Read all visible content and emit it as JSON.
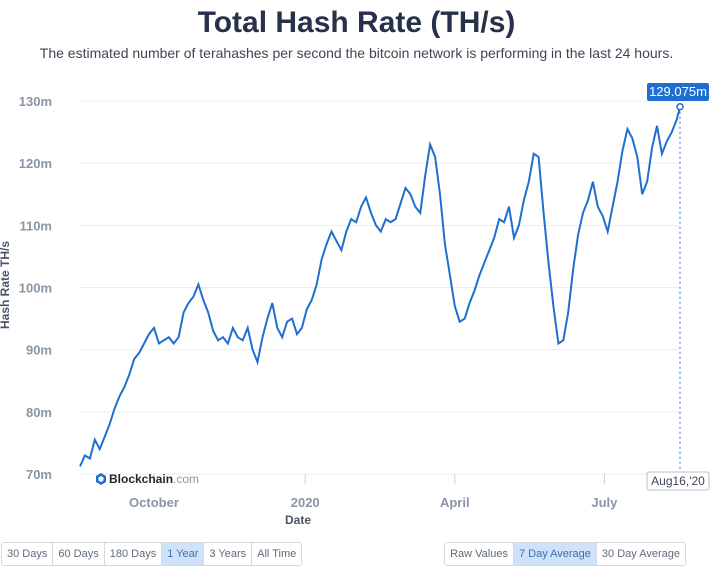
{
  "title": "Total Hash Rate (TH/s)",
  "subtitle": "The estimated number of terahashes per second the bitcoin network is performing in the last 24 hours.",
  "brand": {
    "name": "Blockchain",
    "suffix": ".com"
  },
  "tooltip": {
    "value": "129.075m",
    "date": "Aug16,'20"
  },
  "range_buttons": [
    {
      "label": "30 Days",
      "active": false
    },
    {
      "label": "60 Days",
      "active": false
    },
    {
      "label": "180 Days",
      "active": false
    },
    {
      "label": "1 Year",
      "active": true
    },
    {
      "label": "3 Years",
      "active": false
    },
    {
      "label": "All Time",
      "active": false
    }
  ],
  "avg_buttons": [
    {
      "label": "Raw Values",
      "active": false
    },
    {
      "label": "7 Day Average",
      "active": true
    },
    {
      "label": "30 Day Average",
      "active": false
    }
  ],
  "colors": {
    "line": "#1f6fd1",
    "tooltip_bg": "#1f6fd1",
    "active_button": "#cfe2fa"
  },
  "chart_data": {
    "type": "line",
    "title": "Total Hash Rate (TH/s)",
    "xlabel": "Date",
    "ylabel": "Hash Rate TH/s",
    "ylim": [
      70,
      130
    ],
    "y_ticks": [
      70,
      80,
      90,
      100,
      110,
      120,
      130
    ],
    "y_tick_labels": [
      "70m",
      "80m",
      "90m",
      "100m",
      "110m",
      "120m",
      "130m"
    ],
    "x_range": [
      "2019-08-17",
      "2020-08-16"
    ],
    "x_ticks": [
      {
        "date": "2019-10-01",
        "label": "October"
      },
      {
        "date": "2020-01-01",
        "label": "2020"
      },
      {
        "date": "2020-04-01",
        "label": "April"
      },
      {
        "date": "2020-07-01",
        "label": "July"
      }
    ],
    "grid": true,
    "series": [
      {
        "unit": "TH/s (millions)",
        "x": [
          "2019-08-17",
          "2019-08-20",
          "2019-08-23",
          "2019-08-26",
          "2019-08-29",
          "2019-09-01",
          "2019-09-04",
          "2019-09-07",
          "2019-09-10",
          "2019-09-13",
          "2019-09-16",
          "2019-09-19",
          "2019-09-22",
          "2019-09-25",
          "2019-09-28",
          "2019-10-01",
          "2019-10-04",
          "2019-10-07",
          "2019-10-10",
          "2019-10-13",
          "2019-10-16",
          "2019-10-19",
          "2019-10-22",
          "2019-10-25",
          "2019-10-28",
          "2019-10-31",
          "2019-11-03",
          "2019-11-06",
          "2019-11-09",
          "2019-11-12",
          "2019-11-15",
          "2019-11-18",
          "2019-11-21",
          "2019-11-24",
          "2019-11-27",
          "2019-11-30",
          "2019-12-03",
          "2019-12-06",
          "2019-12-09",
          "2019-12-12",
          "2019-12-15",
          "2019-12-18",
          "2019-12-21",
          "2019-12-24",
          "2019-12-27",
          "2019-12-30",
          "2020-01-02",
          "2020-01-05",
          "2020-01-08",
          "2020-01-11",
          "2020-01-14",
          "2020-01-17",
          "2020-01-20",
          "2020-01-23",
          "2020-01-26",
          "2020-01-29",
          "2020-02-01",
          "2020-02-04",
          "2020-02-07",
          "2020-02-10",
          "2020-02-13",
          "2020-02-16",
          "2020-02-19",
          "2020-02-22",
          "2020-02-25",
          "2020-02-28",
          "2020-03-02",
          "2020-03-05",
          "2020-03-08",
          "2020-03-11",
          "2020-03-14",
          "2020-03-17",
          "2020-03-20",
          "2020-03-23",
          "2020-03-26",
          "2020-03-29",
          "2020-04-01",
          "2020-04-04",
          "2020-04-07",
          "2020-04-10",
          "2020-04-13",
          "2020-04-16",
          "2020-04-19",
          "2020-04-22",
          "2020-04-25",
          "2020-04-28",
          "2020-05-01",
          "2020-05-04",
          "2020-05-07",
          "2020-05-10",
          "2020-05-13",
          "2020-05-16",
          "2020-05-19",
          "2020-05-22",
          "2020-05-25",
          "2020-05-28",
          "2020-05-31",
          "2020-06-03",
          "2020-06-06",
          "2020-06-09",
          "2020-06-12",
          "2020-06-15",
          "2020-06-18",
          "2020-06-21",
          "2020-06-24",
          "2020-06-27",
          "2020-06-30",
          "2020-07-03",
          "2020-07-06",
          "2020-07-09",
          "2020-07-12",
          "2020-07-15",
          "2020-07-18",
          "2020-07-21",
          "2020-07-24",
          "2020-07-27",
          "2020-07-30",
          "2020-08-02",
          "2020-08-05",
          "2020-08-08",
          "2020-08-11",
          "2020-08-14",
          "2020-08-16"
        ],
        "values": [
          71.2,
          73.0,
          72.5,
          75.5,
          74.0,
          76.0,
          78.0,
          80.5,
          82.5,
          84.0,
          86.0,
          88.5,
          89.5,
          91.0,
          92.5,
          93.5,
          91.0,
          91.5,
          92.0,
          91.0,
          92.0,
          96.0,
          97.5,
          98.5,
          100.5,
          98.0,
          96.0,
          93.0,
          91.5,
          92.0,
          91.0,
          93.5,
          92.0,
          91.5,
          93.5,
          90.0,
          88.0,
          92.0,
          95.0,
          97.5,
          93.5,
          92.0,
          94.5,
          95.0,
          92.5,
          93.5,
          96.5,
          98.0,
          100.5,
          104.5,
          107.0,
          109.0,
          107.5,
          106.0,
          109.0,
          111.0,
          110.5,
          113.0,
          114.5,
          112.0,
          110.0,
          109.0,
          111.0,
          110.5,
          111.0,
          113.5,
          116.0,
          115.0,
          113.0,
          112.0,
          118.0,
          123.0,
          121.0,
          115.0,
          107.0,
          102.0,
          97.0,
          94.5,
          95.0,
          97.5,
          99.5,
          102.0,
          104.0,
          106.0,
          108.0,
          111.0,
          110.5,
          113.0,
          108.0,
          110.0,
          114.0,
          117.0,
          121.5,
          121.0,
          112.0,
          104.0,
          97.0,
          91.0,
          91.5,
          96.0,
          103.0,
          108.5,
          112.0,
          114.0,
          117.0,
          113.0,
          111.5,
          109.0,
          113.0,
          117.0,
          122.0,
          125.5,
          124.0,
          121.0,
          115.0,
          117.0,
          122.5,
          126.0,
          121.5,
          123.5,
          125.0,
          127.0,
          129.075
        ]
      }
    ]
  }
}
